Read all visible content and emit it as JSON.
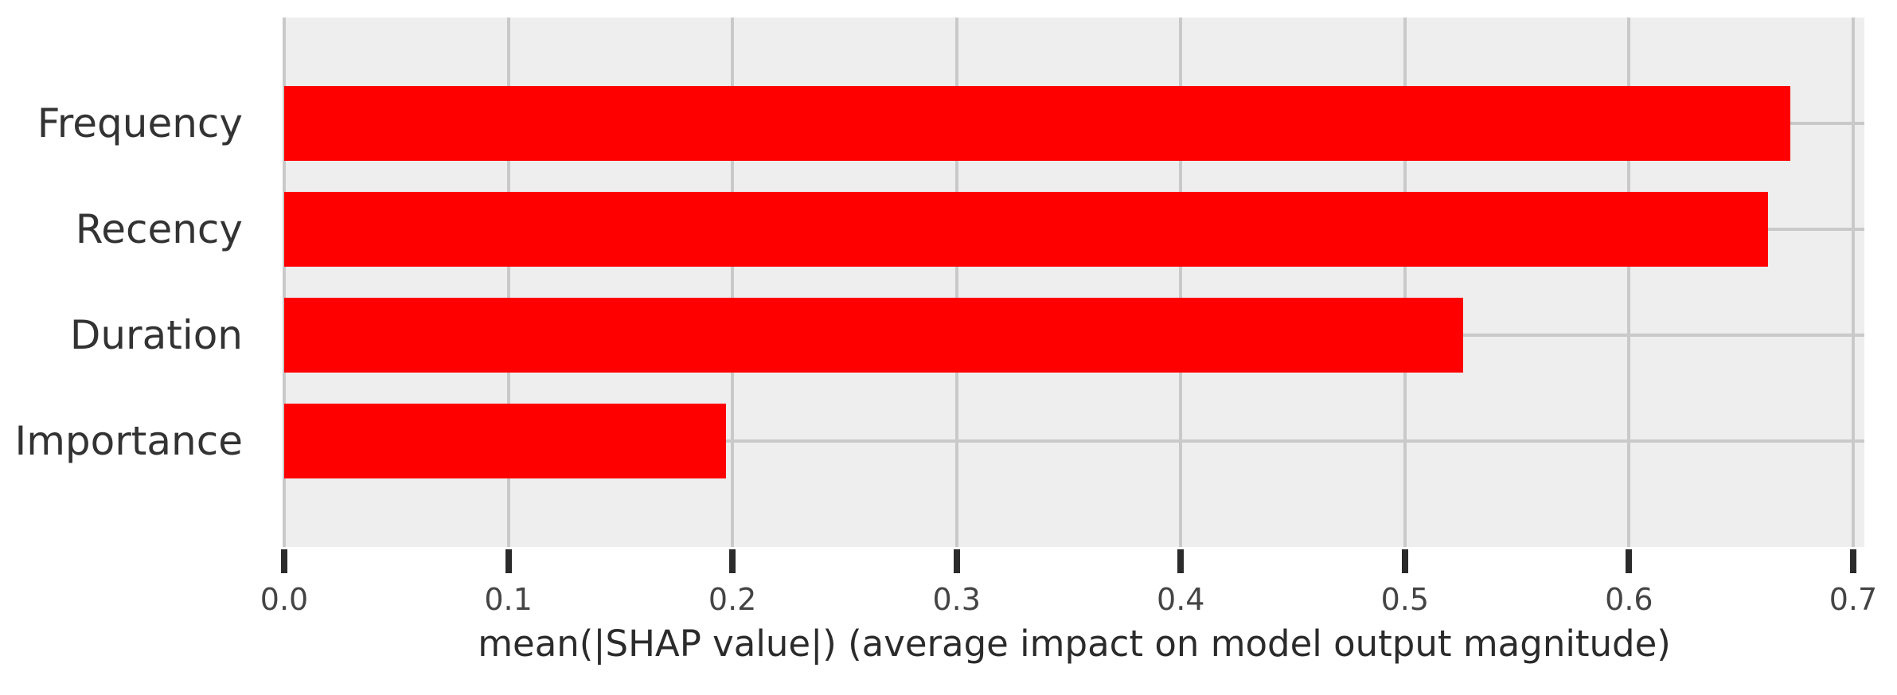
{
  "chart_data": {
    "type": "bar",
    "orientation": "horizontal",
    "title": "",
    "xlabel": "mean(|SHAP value|) (average impact on model output magnitude)",
    "ylabel": "",
    "categories": [
      "Frequency",
      "Recency",
      "Duration",
      "Importance"
    ],
    "values": [
      0.672,
      0.662,
      0.526,
      0.197
    ],
    "xlim": [
      0,
      0.705
    ],
    "xticks": [
      0.0,
      0.1,
      0.2,
      0.3,
      0.4,
      0.5,
      0.6,
      0.7
    ],
    "xtick_labels": [
      "0.0",
      "0.1",
      "0.2",
      "0.3",
      "0.4",
      "0.5",
      "0.6",
      "0.7"
    ],
    "grid": true,
    "legend_position": "none",
    "colors": {
      "bar": "#ff0000",
      "plot_background": "#eeeeee",
      "figure_background": "#ffffff",
      "gridline": "#c9c9c9",
      "tick_mark": "#2b2b2b",
      "tick_text": "#444444",
      "label_text": "#333333"
    }
  }
}
